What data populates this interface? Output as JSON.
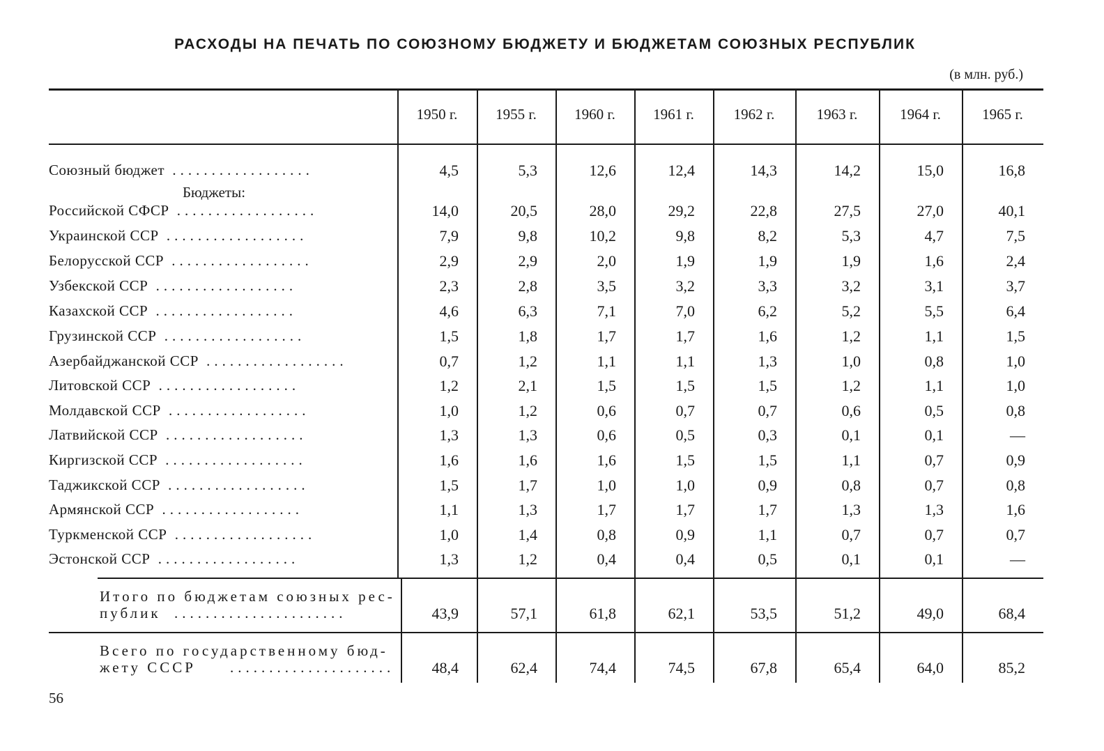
{
  "title": "РАСХОДЫ НА ПЕЧАТЬ ПО СОЮЗНОМУ БЮДЖЕТУ И БЮДЖЕТАМ СОЮЗНЫХ РЕСПУБЛИК",
  "unit": "(в млн. руб.)",
  "years": [
    "1950 г.",
    "1955 г.",
    "1960 г.",
    "1961 г.",
    "1962 г.",
    "1963 г.",
    "1964 г.",
    "1965 г."
  ],
  "subheading": "Бюджеты:",
  "rows": [
    {
      "label": "Союзный бюджет",
      "values": [
        "4,5",
        "5,3",
        "12,6",
        "12,4",
        "14,3",
        "14,2",
        "15,0",
        "16,8"
      ]
    },
    {
      "label": "Российской СФСР",
      "values": [
        "14,0",
        "20,5",
        "28,0",
        "29,2",
        "22,8",
        "27,5",
        "27,0",
        "40,1"
      ]
    },
    {
      "label": "Украинской ССР",
      "values": [
        "7,9",
        "9,8",
        "10,2",
        "9,8",
        "8,2",
        "5,3",
        "4,7",
        "7,5"
      ]
    },
    {
      "label": "Белорусской ССР",
      "values": [
        "2,9",
        "2,9",
        "2,0",
        "1,9",
        "1,9",
        "1,9",
        "1,6",
        "2,4"
      ]
    },
    {
      "label": "Узбекской ССР",
      "values": [
        "2,3",
        "2,8",
        "3,5",
        "3,2",
        "3,3",
        "3,2",
        "3,1",
        "3,7"
      ]
    },
    {
      "label": "Казахской ССР",
      "values": [
        "4,6",
        "6,3",
        "7,1",
        "7,0",
        "6,2",
        "5,2",
        "5,5",
        "6,4"
      ]
    },
    {
      "label": "Грузинской ССР",
      "values": [
        "1,5",
        "1,8",
        "1,7",
        "1,7",
        "1,6",
        "1,2",
        "1,1",
        "1,5"
      ]
    },
    {
      "label": "Азербайджанской ССР",
      "values": [
        "0,7",
        "1,2",
        "1,1",
        "1,1",
        "1,3",
        "1,0",
        "0,8",
        "1,0"
      ]
    },
    {
      "label": "Литовской ССР",
      "values": [
        "1,2",
        "2,1",
        "1,5",
        "1,5",
        "1,5",
        "1,2",
        "1,1",
        "1,0"
      ]
    },
    {
      "label": "Молдавской ССР",
      "values": [
        "1,0",
        "1,2",
        "0,6",
        "0,7",
        "0,7",
        "0,6",
        "0,5",
        "0,8"
      ]
    },
    {
      "label": "Латвийской ССР",
      "values": [
        "1,3",
        "1,3",
        "0,6",
        "0,5",
        "0,3",
        "0,1",
        "0,1",
        "—"
      ]
    },
    {
      "label": "Киргизской ССР",
      "values": [
        "1,6",
        "1,6",
        "1,6",
        "1,5",
        "1,5",
        "1,1",
        "0,7",
        "0,9"
      ]
    },
    {
      "label": "Таджикской ССР",
      "values": [
        "1,5",
        "1,7",
        "1,0",
        "1,0",
        "0,9",
        "0,8",
        "0,7",
        "0,8"
      ]
    },
    {
      "label": "Армянской ССР",
      "values": [
        "1,1",
        "1,3",
        "1,7",
        "1,7",
        "1,7",
        "1,3",
        "1,3",
        "1,6"
      ]
    },
    {
      "label": "Туркменской ССР",
      "values": [
        "1,0",
        "1,4",
        "0,8",
        "0,9",
        "1,1",
        "0,7",
        "0,7",
        "0,7"
      ]
    },
    {
      "label": "Эстонской ССР",
      "values": [
        "1,3",
        "1,2",
        "0,4",
        "0,4",
        "0,5",
        "0,1",
        "0,1",
        "—"
      ]
    }
  ],
  "total_republics": {
    "label_line1": "Итого по бюджетам союзных рес-",
    "label_line2": "публик",
    "values": [
      "43,9",
      "57,1",
      "61,8",
      "62,1",
      "53,5",
      "51,2",
      "49,0",
      "68,4"
    ]
  },
  "total_ussr": {
    "label_line1": "Всего по государственному бюд-",
    "label_line2": "жету СССР",
    "values": [
      "48,4",
      "62,4",
      "74,4",
      "74,5",
      "67,8",
      "65,4",
      "64,0",
      "85,2"
    ]
  },
  "page_number": "56"
}
